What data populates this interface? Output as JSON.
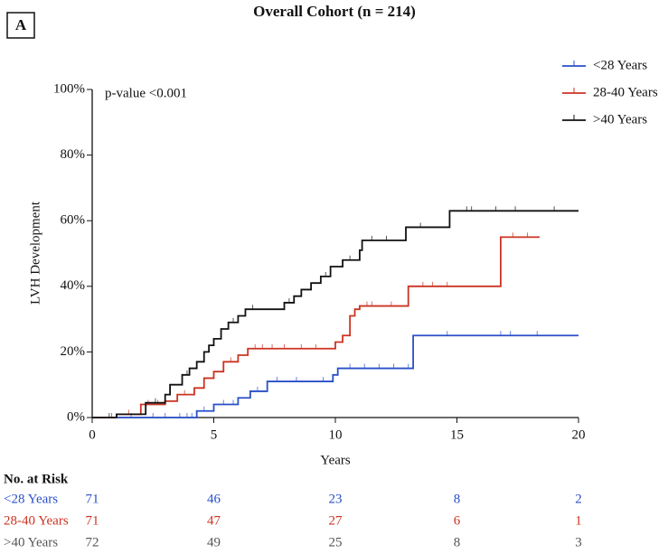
{
  "chart_data": {
    "type": "step",
    "panel_label": "A",
    "title": "Overall Cohort (n = 214)",
    "annotation": "p-value <0.001",
    "x_label": "Years",
    "y_label": "LVH Development",
    "xlim": [
      0,
      20
    ],
    "xticks": [
      0,
      5,
      10,
      15,
      20
    ],
    "ylim": [
      0,
      100
    ],
    "yticks": [
      {
        "value": 0,
        "label": "0%"
      },
      {
        "value": 20,
        "label": "20%"
      },
      {
        "value": 40,
        "label": "40%"
      },
      {
        "value": 60,
        "label": "60%"
      },
      {
        "value": 80,
        "label": "80%"
      },
      {
        "value": 100,
        "label": "100%"
      }
    ],
    "series": [
      {
        "name": "<28 Years",
        "color": "#2a4fc9",
        "x": [
          0,
          4.3,
          5.0,
          6.0,
          6.5,
          7.2,
          9.9,
          10.1,
          13.2,
          20
        ],
        "values": [
          0,
          2,
          4,
          6,
          8,
          11,
          13,
          15,
          25,
          25
        ],
        "censored": [
          0.8,
          1.6,
          2.5,
          3.0,
          3.6,
          3.9,
          4.1,
          4.6,
          5.4,
          5.8,
          6.8,
          7.6,
          8.4,
          9.5,
          10.6,
          11.2,
          11.8,
          12.4,
          13.0,
          14.6,
          16.8,
          17.2,
          18.3
        ]
      },
      {
        "name": "28-40 Years",
        "color": "#cc3322",
        "x": [
          0,
          1.0,
          2.0,
          3.0,
          3.5,
          4.2,
          4.6,
          5.0,
          5.4,
          6.0,
          6.4,
          10.0,
          10.3,
          10.6,
          10.8,
          11.0,
          13.0,
          16.8,
          18.4
        ],
        "values": [
          0,
          1,
          4,
          5,
          7,
          9,
          12,
          14,
          17,
          19,
          21,
          23,
          25,
          31,
          33,
          34,
          40,
          55,
          55
        ],
        "censored": [
          1.5,
          2.3,
          2.7,
          3.8,
          5.7,
          6.7,
          7.0,
          7.4,
          7.9,
          8.6,
          9.2,
          11.3,
          11.5,
          12.3,
          13.6,
          14.0,
          14.6,
          17.3,
          17.9
        ]
      },
      {
        "name": ">40 Years",
        "color": "#111111",
        "x": [
          0,
          1.0,
          2.2,
          3.0,
          3.2,
          3.7,
          4.0,
          4.3,
          4.6,
          4.8,
          5.0,
          5.3,
          5.6,
          6.0,
          6.3,
          7.9,
          8.3,
          8.6,
          9.0,
          9.4,
          9.8,
          10.3,
          11.0,
          11.1,
          12.9,
          14.7,
          20
        ],
        "values": [
          0,
          1,
          4.5,
          7,
          10,
          13,
          15,
          17,
          20,
          22,
          24,
          27,
          29,
          31,
          33,
          35,
          37,
          39,
          41,
          43,
          46,
          48,
          51,
          54,
          58,
          63,
          63
        ],
        "censored": [
          0.7,
          2.6,
          3.9,
          5.8,
          6.6,
          8.1,
          9.6,
          10.6,
          11.5,
          12.1,
          13.5,
          15.4,
          15.6,
          16.6,
          17.4,
          19.0
        ]
      }
    ],
    "risk_table": {
      "title": "No. at Risk",
      "rows": [
        {
          "name": "<28 Years",
          "color": "#2a4fc9",
          "values": [
            71,
            46,
            23,
            8,
            2
          ]
        },
        {
          "name": "28-40 Years",
          "color": "#cc3322",
          "values": [
            71,
            47,
            27,
            6,
            1
          ]
        },
        {
          "name": ">40 Years",
          "color": "#555555",
          "values": [
            72,
            49,
            25,
            8,
            3
          ]
        }
      ]
    }
  }
}
